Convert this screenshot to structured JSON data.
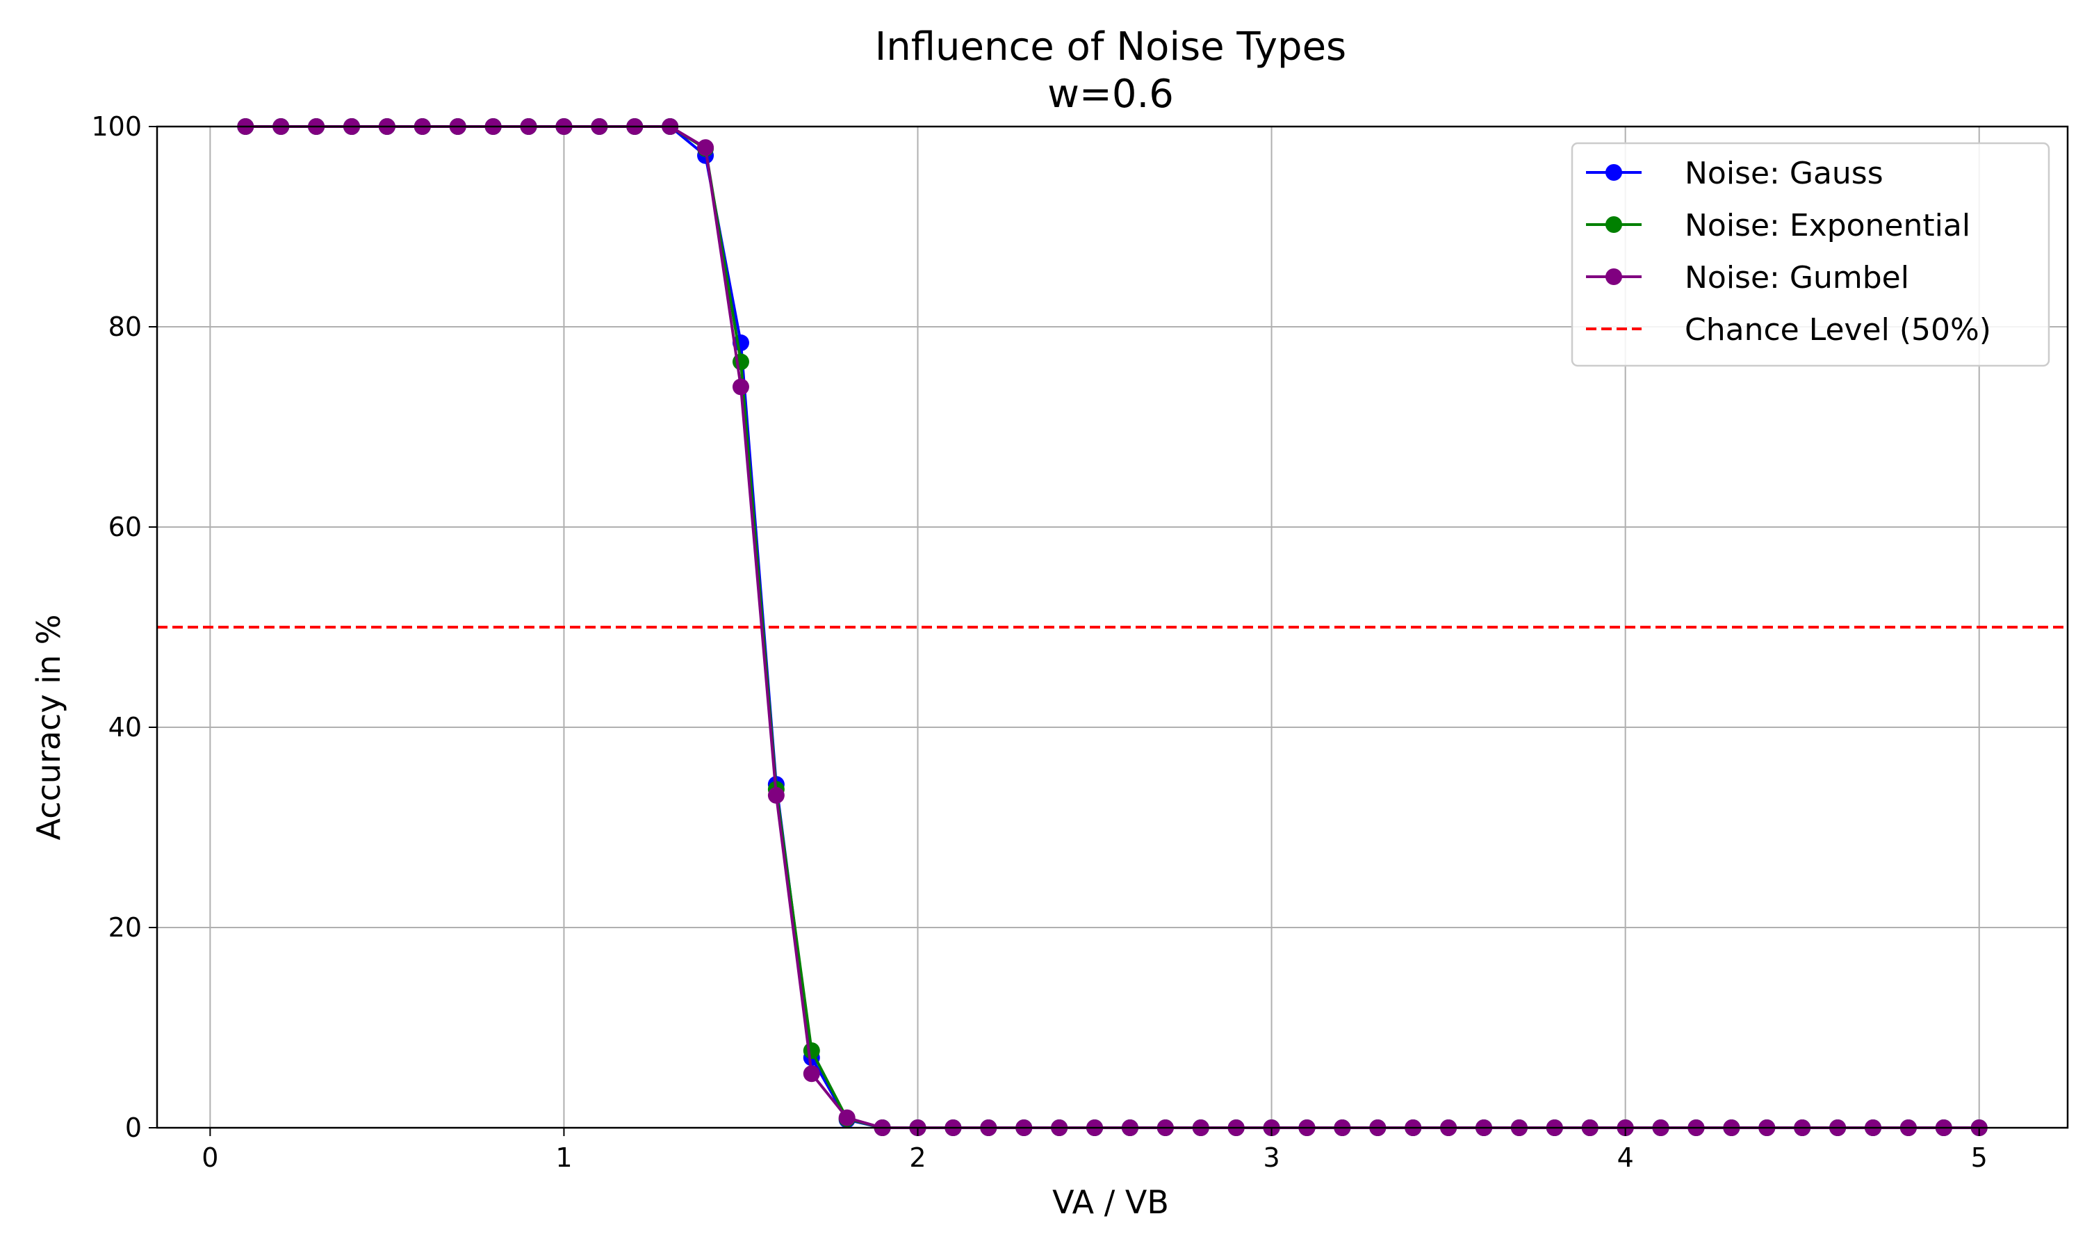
{
  "chart_data": {
    "type": "line",
    "title": "Influence of Noise Types",
    "subtitle": "w=0.6",
    "xlabel": "VA / VB",
    "ylabel": "Accuracy in %",
    "xlim": [
      -0.15,
      5.25
    ],
    "ylim": [
      0,
      100
    ],
    "xticks": [
      0,
      1,
      2,
      3,
      4,
      5
    ],
    "yticks": [
      0,
      20,
      40,
      60,
      80,
      100
    ],
    "grid": true,
    "legend_position": "top-right",
    "x": [
      0.1,
      0.2,
      0.3,
      0.4,
      0.5,
      0.6,
      0.7,
      0.8,
      0.9,
      1.0,
      1.1,
      1.2,
      1.3,
      1.4,
      1.5,
      1.6,
      1.7,
      1.8,
      1.9,
      2.0,
      2.1,
      2.2,
      2.3,
      2.4,
      2.5,
      2.6,
      2.7,
      2.8,
      2.9,
      3.0,
      3.1,
      3.2,
      3.3,
      3.4,
      3.5,
      3.6,
      3.7,
      3.8,
      3.9,
      4.0,
      4.1,
      4.2,
      4.3,
      4.4,
      4.5,
      4.6,
      4.7,
      4.8,
      4.9,
      5.0
    ],
    "series": [
      {
        "name": "Noise: Gauss",
        "color": "#0000ff",
        "values": [
          100,
          100,
          100,
          100,
          100,
          100,
          100,
          100,
          100,
          100,
          100,
          100,
          100,
          97.1,
          78.4,
          34.3,
          7.0,
          0.8,
          0,
          0,
          0,
          0,
          0,
          0,
          0,
          0,
          0,
          0,
          0,
          0,
          0,
          0,
          0,
          0,
          0,
          0,
          0,
          0,
          0,
          0,
          0,
          0,
          0,
          0,
          0,
          0,
          0,
          0,
          0,
          0
        ]
      },
      {
        "name": "Noise: Exponential",
        "color": "#008000",
        "values": [
          100,
          100,
          100,
          100,
          100,
          100,
          100,
          100,
          100,
          100,
          100,
          100,
          100,
          97.8,
          76.5,
          33.8,
          7.7,
          0.9,
          0,
          0,
          0,
          0,
          0,
          0,
          0,
          0,
          0,
          0,
          0,
          0,
          0,
          0,
          0,
          0,
          0,
          0,
          0,
          0,
          0,
          0,
          0,
          0,
          0,
          0,
          0,
          0,
          0,
          0,
          0,
          0
        ]
      },
      {
        "name": "Noise: Gumbel",
        "color": "#800080",
        "values": [
          100,
          100,
          100,
          100,
          100,
          100,
          100,
          100,
          100,
          100,
          100,
          100,
          100,
          97.9,
          74.0,
          33.2,
          5.4,
          1.0,
          0,
          0,
          0,
          0,
          0,
          0,
          0,
          0,
          0,
          0,
          0,
          0,
          0,
          0,
          0,
          0,
          0,
          0,
          0,
          0,
          0,
          0,
          0,
          0,
          0,
          0,
          0,
          0,
          0,
          0,
          0,
          0
        ]
      }
    ],
    "reference_line": {
      "name": "Chance Level (50%)",
      "y": 50,
      "color": "#ff0000",
      "style": "dashed"
    }
  }
}
